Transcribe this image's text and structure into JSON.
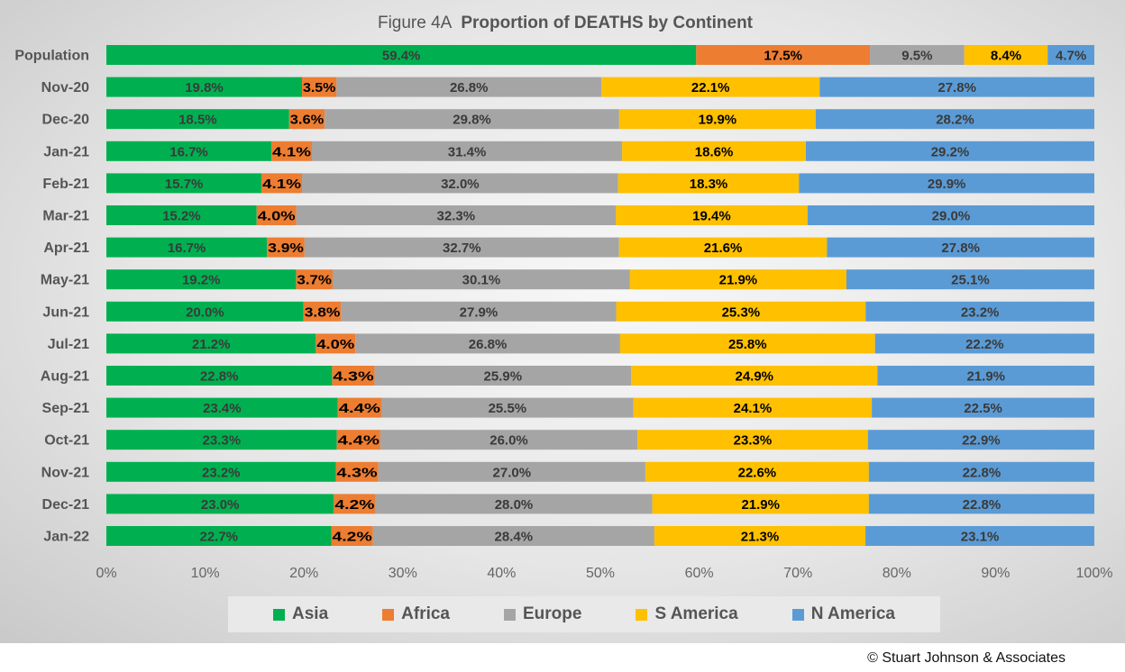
{
  "chart_data": {
    "type": "bar",
    "orientation": "horizontal",
    "stacked": true,
    "title_prefix": "Figure  4A",
    "title": "Proportion of DEATHS by Continent",
    "categories": [
      "Population",
      "Nov-20",
      "Dec-20",
      "Jan-21",
      "Feb-21",
      "Mar-21",
      "Apr-21",
      "May-21",
      "Jun-21",
      "Jul-21",
      "Aug-21",
      "Sep-21",
      "Oct-21",
      "Nov-21",
      "Dec-21",
      "Jan-22"
    ],
    "series": [
      {
        "name": "Asia",
        "color": "#00b050",
        "values": [
          59.4,
          19.8,
          18.5,
          16.7,
          15.7,
          15.2,
          16.7,
          19.2,
          20.0,
          21.2,
          22.8,
          23.4,
          23.3,
          23.2,
          23.0,
          22.7
        ],
        "labels": [
          "59.4%",
          "19.8%",
          "18.5%",
          "16.7%",
          "15.7%",
          "15.2%",
          "16.7%",
          "19.2%",
          "20.0%",
          "21.2%",
          "22.8%",
          "23.4%",
          "23.3%",
          "23.2%",
          "23.0%",
          "22.7%"
        ]
      },
      {
        "name": "Africa",
        "color": "#ed7d31",
        "values": [
          17.5,
          3.5,
          3.6,
          4.1,
          4.1,
          4.0,
          3.9,
          3.7,
          3.8,
          4.0,
          4.3,
          4.4,
          4.4,
          4.3,
          4.2,
          4.2
        ],
        "labels": [
          "17.5%",
          "3.5%",
          "3.6%",
          "4.1%",
          "4.1%",
          "4.0%",
          "3.9%",
          "3.7%",
          "3.8%",
          "4.0%",
          "4.3%",
          "4.4%",
          "4.4%",
          "4.3%",
          "4.2%",
          "4.2%"
        ]
      },
      {
        "name": "Europe",
        "color": "#a5a5a5",
        "values": [
          9.5,
          26.8,
          29.8,
          31.4,
          32.0,
          32.3,
          32.7,
          30.1,
          27.9,
          26.8,
          25.9,
          25.5,
          26.0,
          27.0,
          28.0,
          28.4
        ],
        "labels": [
          "9.5%",
          "26.8%",
          "29.8%",
          "31.4%",
          "32.0%",
          "32.3%",
          "32.7%",
          "30.1%",
          "27.9%",
          "26.8%",
          "25.9%",
          "25.5%",
          "26.0%",
          "27.0%",
          "28.0%",
          "28.4%"
        ]
      },
      {
        "name": "S America",
        "color": "#ffc000",
        "values": [
          8.4,
          22.1,
          19.9,
          18.6,
          18.3,
          19.4,
          21.6,
          21.9,
          25.3,
          25.8,
          24.9,
          24.1,
          23.3,
          22.6,
          21.9,
          21.3
        ],
        "labels": [
          "8.4%",
          "22.1%",
          "19.9%",
          "18.6%",
          "18.3%",
          "19.4%",
          "21.6%",
          "21.9%",
          "25.3%",
          "25.8%",
          "24.9%",
          "24.1%",
          "23.3%",
          "22.6%",
          "21.9%",
          "21.3%"
        ]
      },
      {
        "name": "N America",
        "color": "#5b9bd5",
        "values": [
          4.7,
          27.8,
          28.2,
          29.2,
          29.9,
          29.0,
          27.8,
          25.1,
          23.2,
          22.2,
          21.9,
          22.5,
          22.9,
          22.8,
          22.8,
          23.1
        ],
        "labels": [
          "4.7%",
          "27.8%",
          "28.2%",
          "29.2%",
          "29.9%",
          "29.0%",
          "27.8%",
          "25.1%",
          "23.2%",
          "22.2%",
          "21.9%",
          "22.5%",
          "22.9%",
          "22.8%",
          "22.8%",
          "23.1%"
        ]
      }
    ],
    "xlim": [
      0,
      100
    ],
    "x_ticks": [
      "0%",
      "10%",
      "20%",
      "30%",
      "40%",
      "50%",
      "60%",
      "70%",
      "80%",
      "90%",
      "100%"
    ],
    "legend_position": "bottom",
    "grid": false
  },
  "copyright": "© Stuart Johnson & Associates"
}
